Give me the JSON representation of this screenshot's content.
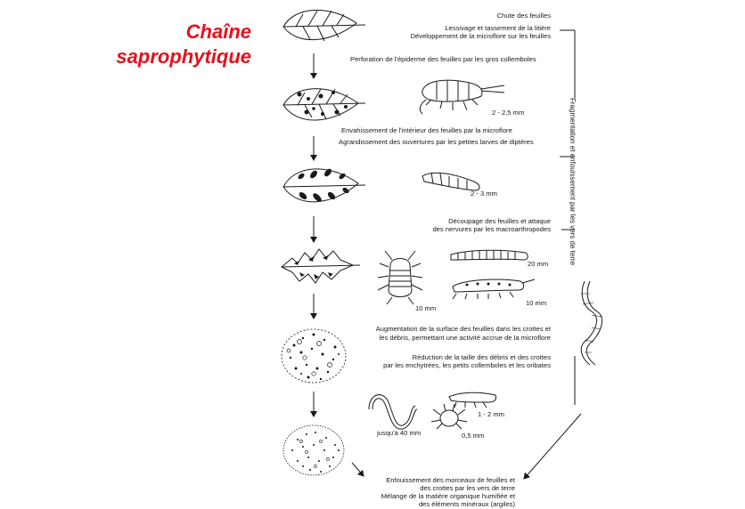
{
  "title": {
    "line1": "Chaîne",
    "line2": "saprophytique"
  },
  "steps": {
    "chute": "Chute des feuilles",
    "lessivage_1": "Lessivage et tassement de la litière",
    "lessivage_2": "Développement de la microflore sur les feuilles",
    "perforation": "Perforation de l'épiderme des feuilles par les gros collemboles",
    "envahissement": "Envahissement de l'intérieur des feuilles par la microflore",
    "agrandissement": "Agrandissement des ouvertures par les petites larves de diptères",
    "decoupage_1": "Découpage des feuilles et attaque",
    "decoupage_2": "des nervures par les macroarthropodes",
    "augmentation_1": "Augmentation de la surface des feuilles dans les crottes et",
    "augmentation_2": "les débris, permettant une activité accrue de la microflore",
    "reduction_1": "Réduction de la taille des débris et des crottes",
    "reduction_2": "par les enchytrées, les petits collemboles et les oribates",
    "enfouissement_1": "Enfouissement des morceaux de feuilles et",
    "enfouissement_2": "des crottes par les vers de terre",
    "melange_1": "Mélange de la matière organique humifiée et",
    "melange_2": "des éléments minéraux (argiles)"
  },
  "sizes": {
    "collembole": "2 - 2,5 mm",
    "larve": "2 - 3 mm",
    "isopode": "10 mm",
    "diplopode": "20 mm",
    "chilopode": "10 mm",
    "enchytree": "jusqu'à 40 mm",
    "collembole_petit": "1 - 2 mm",
    "oribate": "0,5 mm"
  },
  "side_label": "Fragmentation et enfouissement par les vers de terre",
  "colors": {
    "title": "#e8101a",
    "ink": "#1a1a1a"
  }
}
